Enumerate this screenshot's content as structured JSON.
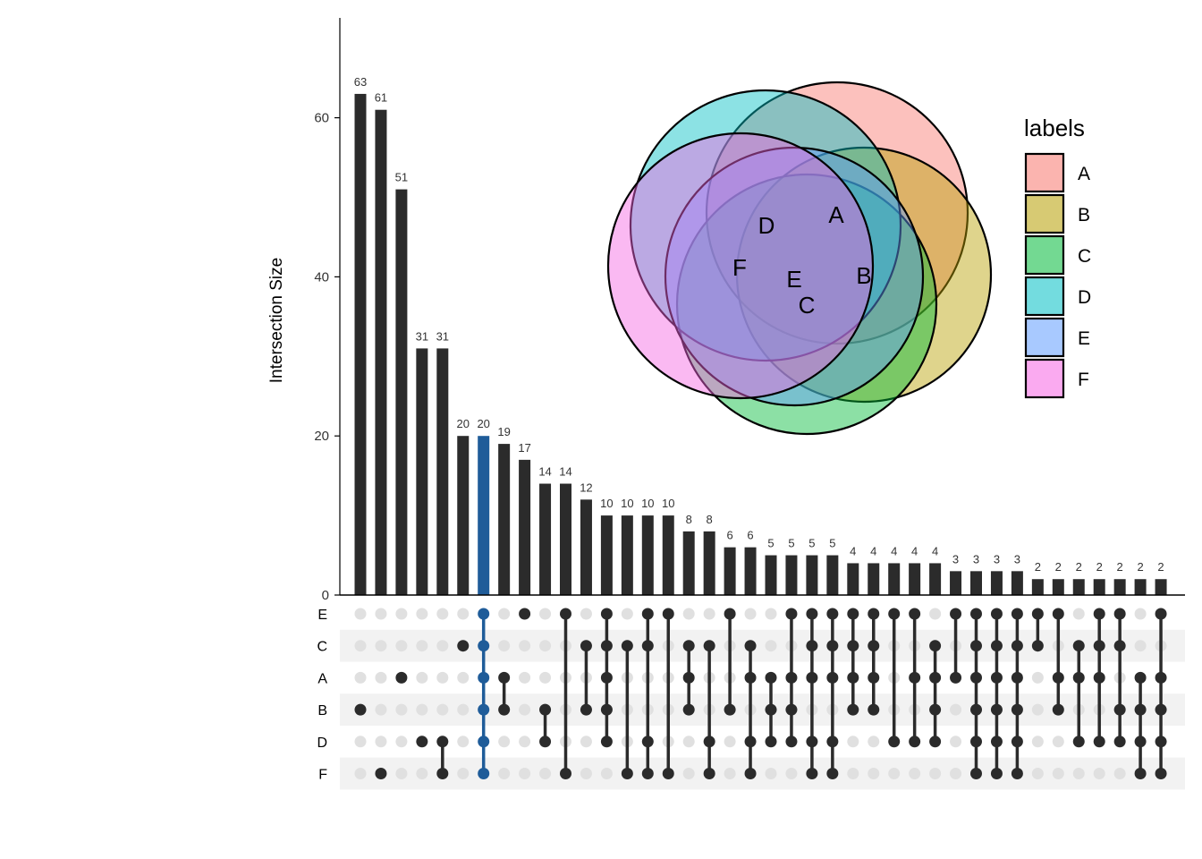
{
  "colors": {
    "bar": "#2b2b2b",
    "highlight": "#1f5c99",
    "dot_off": "#e0e0e0",
    "stripe": "#f2f2f2",
    "axis": "#000000",
    "text": "#333333"
  },
  "chart_data": [
    {
      "type": "bar",
      "title": "",
      "ylabel": "Intersection Size",
      "ylim": [
        0,
        72
      ],
      "yticks": [
        0,
        20,
        40,
        60
      ],
      "sets": [
        "E",
        "C",
        "A",
        "B",
        "D",
        "F"
      ],
      "highlight_index": 6,
      "values": [
        63,
        61,
        51,
        31,
        31,
        20,
        20,
        19,
        17,
        14,
        14,
        12,
        10,
        10,
        10,
        10,
        8,
        8,
        6,
        6,
        5,
        5,
        5,
        5,
        4,
        4,
        4,
        4,
        4,
        3,
        3,
        3,
        3,
        2,
        2,
        2,
        2,
        2,
        2,
        2
      ],
      "memberships": [
        [
          "B"
        ],
        [
          "F"
        ],
        [
          "A"
        ],
        [
          "D"
        ],
        [
          "D",
          "F"
        ],
        [
          "C"
        ],
        [
          "E",
          "C",
          "A",
          "B",
          "D",
          "F"
        ],
        [
          "A",
          "B"
        ],
        [
          "E"
        ],
        [
          "B",
          "D"
        ],
        [
          "E",
          "F"
        ],
        [
          "C",
          "B"
        ],
        [
          "E",
          "C",
          "A",
          "B",
          "D"
        ],
        [
          "C",
          "F"
        ],
        [
          "E",
          "C",
          "D",
          "F"
        ],
        [
          "E",
          "F"
        ],
        [
          "C",
          "A",
          "B"
        ],
        [
          "C",
          "D",
          "F"
        ],
        [
          "E",
          "B"
        ],
        [
          "C",
          "A",
          "D",
          "F"
        ],
        [
          "A",
          "B",
          "D"
        ],
        [
          "E",
          "A",
          "B",
          "D"
        ],
        [
          "E",
          "C",
          "A",
          "D",
          "F"
        ],
        [
          "E",
          "C",
          "A",
          "D",
          "F"
        ],
        [
          "E",
          "C",
          "A",
          "B"
        ],
        [
          "E",
          "C",
          "A",
          "B"
        ],
        [
          "E",
          "D"
        ],
        [
          "E",
          "A",
          "D"
        ],
        [
          "C",
          "A",
          "B",
          "D"
        ],
        [
          "E",
          "A"
        ],
        [
          "E",
          "C",
          "A",
          "B",
          "D",
          "F"
        ],
        [
          "E",
          "C",
          "A",
          "B",
          "D",
          "F"
        ],
        [
          "E",
          "C",
          "A",
          "B",
          "D",
          "F"
        ],
        [
          "E",
          "C"
        ],
        [
          "E",
          "A",
          "B"
        ],
        [
          "C",
          "A",
          "D"
        ],
        [
          "E",
          "C",
          "A",
          "D"
        ],
        [
          "E",
          "C",
          "B",
          "D"
        ],
        [
          "A",
          "B",
          "D",
          "F"
        ],
        [
          "E",
          "A",
          "B",
          "D",
          "F"
        ]
      ]
    },
    {
      "type": "venn",
      "legend_title": "labels",
      "legend_position": "right",
      "sets": [
        {
          "label": "A",
          "color": "#f8766d"
        },
        {
          "label": "B",
          "color": "#b79f00"
        },
        {
          "label": "C",
          "color": "#00ba38"
        },
        {
          "label": "D",
          "color": "#00bfc4"
        },
        {
          "label": "E",
          "color": "#619cff"
        },
        {
          "label": "F",
          "color": "#f564e3"
        }
      ]
    }
  ]
}
